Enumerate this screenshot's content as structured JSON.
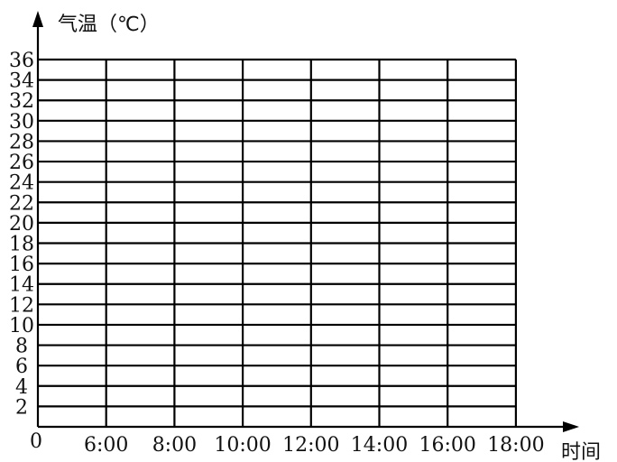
{
  "chart_data": {
    "type": "line",
    "title": "",
    "xlabel": "时间",
    "ylabel": "气温（℃）",
    "origin_label": "0",
    "categories": [
      "6:00",
      "8:00",
      "10:00",
      "12:00",
      "14:00",
      "16:00",
      "18:00"
    ],
    "yticks": [
      2,
      4,
      6,
      8,
      10,
      12,
      14,
      16,
      18,
      20,
      22,
      24,
      26,
      28,
      30,
      32,
      34,
      36
    ],
    "ylim": [
      0,
      36
    ],
    "series": [],
    "grid": true,
    "colors": {
      "line": "#000000"
    }
  }
}
